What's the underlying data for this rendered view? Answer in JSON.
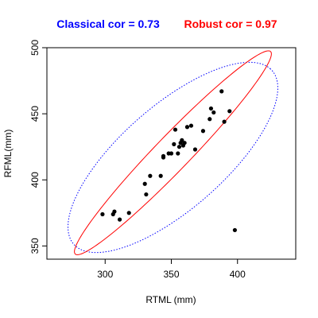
{
  "chart_data": {
    "type": "scatter",
    "titles": {
      "classical": "Classical cor = 0.73",
      "robust": "Robust cor = 0.97"
    },
    "xlabel": "RTML (mm)",
    "ylabel": "RFML(mm)",
    "xlim": [
      256,
      444
    ],
    "ylim": [
      340,
      500
    ],
    "xticks": [
      300,
      350,
      400
    ],
    "yticks": [
      350,
      400,
      450,
      500
    ],
    "points": [
      {
        "x": 298,
        "y": 374
      },
      {
        "x": 306,
        "y": 374
      },
      {
        "x": 307,
        "y": 376
      },
      {
        "x": 311,
        "y": 370
      },
      {
        "x": 318,
        "y": 375
      },
      {
        "x": 330,
        "y": 397
      },
      {
        "x": 331,
        "y": 389
      },
      {
        "x": 334,
        "y": 403
      },
      {
        "x": 342,
        "y": 403
      },
      {
        "x": 344,
        "y": 418
      },
      {
        "x": 344,
        "y": 417
      },
      {
        "x": 348,
        "y": 420
      },
      {
        "x": 350,
        "y": 420
      },
      {
        "x": 352,
        "y": 427
      },
      {
        "x": 353,
        "y": 438
      },
      {
        "x": 355,
        "y": 420
      },
      {
        "x": 356,
        "y": 425
      },
      {
        "x": 357,
        "y": 428
      },
      {
        "x": 358,
        "y": 430
      },
      {
        "x": 359,
        "y": 426
      },
      {
        "x": 360,
        "y": 428
      },
      {
        "x": 362,
        "y": 440
      },
      {
        "x": 365,
        "y": 441
      },
      {
        "x": 368,
        "y": 423
      },
      {
        "x": 374,
        "y": 437
      },
      {
        "x": 379,
        "y": 446
      },
      {
        "x": 380,
        "y": 454
      },
      {
        "x": 382,
        "y": 451
      },
      {
        "x": 388,
        "y": 467
      },
      {
        "x": 390,
        "y": 444
      },
      {
        "x": 394,
        "y": 452
      },
      {
        "x": 398,
        "y": 362
      }
    ],
    "ellipses": [
      {
        "name": "classical",
        "color": "#0000FF",
        "style": "dotted",
        "center": [
          351.2,
          417.0
        ],
        "radius": 3.037,
        "sd_x": 26.1,
        "sd_y": 23.7,
        "cor": 0.73
      },
      {
        "name": "robust",
        "color": "#FF0000",
        "style": "solid",
        "center": [
          351.2,
          420.5
        ],
        "radius": 3.037,
        "sd_x": 24.5,
        "sd_y": 25.4,
        "cor": 0.97
      }
    ],
    "colors": {
      "classical": "#0000FF",
      "robust": "#FF0000",
      "points": "#000000",
      "axes": "#000000"
    },
    "grid": false
  }
}
